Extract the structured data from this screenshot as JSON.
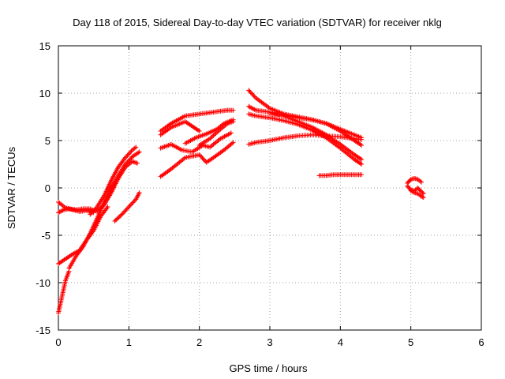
{
  "chart_data": {
    "type": "scatter",
    "title": "Day 118 of 2015, Sidereal Day-to-day VTEC variation (SDTVAR) for receiver nklg",
    "xlabel": "GPS time / hours",
    "ylabel": "SDTVAR / TECUs",
    "xlim": [
      0,
      6
    ],
    "ylim": [
      -15,
      15
    ],
    "xticks": [
      0,
      1,
      2,
      3,
      4,
      5,
      6
    ],
    "yticks": [
      -15,
      -10,
      -5,
      0,
      5,
      10,
      15
    ],
    "grid": true,
    "marker": "+",
    "color": "#ff0000",
    "series": [
      {
        "x": [
          0.0,
          0.1,
          0.2,
          0.3,
          0.4,
          0.5
        ],
        "y": [
          -1.5,
          -2.1,
          -2.3,
          -2.5,
          -2.4,
          -2.6
        ]
      },
      {
        "x": [
          0.0,
          0.08,
          0.15,
          0.25,
          0.35,
          0.45,
          0.55
        ],
        "y": [
          -2.6,
          -2.3,
          -2.2,
          -2.3,
          -2.2,
          -2.2,
          -2.5
        ]
      },
      {
        "x": [
          0.45,
          0.55,
          0.65,
          0.75,
          0.85,
          0.95,
          1.05,
          1.1
        ],
        "y": [
          -2.8,
          -2.0,
          -0.8,
          0.8,
          2.2,
          3.2,
          4.0,
          4.3
        ]
      },
      {
        "x": [
          0.55,
          0.65,
          0.75,
          0.85,
          0.95,
          1.05,
          1.12
        ],
        "y": [
          -2.4,
          -1.8,
          -0.5,
          1.0,
          2.2,
          2.8,
          2.6
        ]
      },
      {
        "x": [
          0.0,
          0.1,
          0.2,
          0.3,
          0.4,
          0.5,
          0.6,
          0.7
        ],
        "y": [
          -8.0,
          -7.5,
          -7.0,
          -6.6,
          -5.5,
          -4.5,
          -3.0,
          -2.0
        ]
      },
      {
        "x": [
          0.0,
          0.05,
          0.1,
          0.15
        ],
        "y": [
          -13.2,
          -11.5,
          -9.8,
          -8.8
        ]
      },
      {
        "x": [
          0.15,
          0.25,
          0.35,
          0.45,
          0.55,
          0.65,
          0.75,
          0.85,
          0.95,
          1.05,
          1.15
        ],
        "y": [
          -8.5,
          -7.2,
          -6.2,
          -4.8,
          -3.2,
          -1.5,
          0.0,
          1.3,
          2.5,
          3.3,
          3.8
        ]
      },
      {
        "x": [
          0.8,
          0.9,
          1.0,
          1.1,
          1.15
        ],
        "y": [
          -3.5,
          -2.8,
          -2.0,
          -1.2,
          -0.5
        ]
      },
      {
        "x": [
          1.45,
          1.6,
          1.8,
          2.0,
          2.2,
          2.4,
          2.48
        ],
        "y": [
          6.0,
          6.8,
          7.6,
          7.8,
          8.0,
          8.2,
          8.2
        ]
      },
      {
        "x": [
          1.45,
          1.6,
          1.8,
          1.9,
          2.0
        ],
        "y": [
          5.6,
          6.4,
          7.0,
          6.5,
          6.0
        ]
      },
      {
        "x": [
          1.45,
          1.6,
          1.75,
          1.9,
          2.05,
          2.15,
          2.3,
          2.45
        ],
        "y": [
          4.2,
          4.6,
          4.0,
          3.8,
          4.5,
          4.3,
          5.2,
          5.8
        ]
      },
      {
        "x": [
          1.45,
          1.6,
          1.8,
          2.0,
          2.1,
          2.2,
          2.35,
          2.48
        ],
        "y": [
          1.2,
          2.0,
          3.2,
          3.5,
          2.7,
          3.2,
          4.0,
          4.8
        ]
      },
      {
        "x": [
          1.8,
          1.95,
          2.1,
          2.25,
          2.35,
          2.48
        ],
        "y": [
          4.7,
          5.3,
          5.7,
          6.2,
          6.8,
          7.2
        ]
      },
      {
        "x": [
          2.0,
          2.15,
          2.3,
          2.4,
          2.48
        ],
        "y": [
          4.5,
          5.2,
          6.2,
          6.8,
          7.0
        ]
      },
      {
        "x": [
          2.7,
          2.8,
          3.0,
          3.2,
          3.4,
          3.6,
          3.8,
          4.0,
          4.2,
          4.3
        ],
        "y": [
          10.3,
          9.5,
          8.4,
          7.8,
          7.5,
          7.2,
          6.8,
          6.0,
          5.0,
          4.5
        ]
      },
      {
        "x": [
          2.7,
          2.8,
          3.0,
          3.2,
          3.4,
          3.6,
          3.8,
          4.0,
          4.2,
          4.3
        ],
        "y": [
          8.6,
          8.2,
          8.0,
          7.6,
          7.0,
          6.4,
          5.6,
          4.6,
          3.5,
          3.0
        ]
      },
      {
        "x": [
          2.7,
          2.8,
          3.0,
          3.2,
          3.4,
          3.6,
          3.8,
          4.0,
          4.2,
          4.3
        ],
        "y": [
          7.8,
          7.6,
          7.4,
          7.1,
          6.7,
          6.1,
          5.3,
          4.2,
          3.0,
          2.5
        ]
      },
      {
        "x": [
          2.7,
          2.8,
          3.0,
          3.2,
          3.4,
          3.6,
          3.8,
          4.0,
          4.2,
          4.3
        ],
        "y": [
          4.6,
          4.8,
          5.0,
          5.3,
          5.5,
          5.6,
          5.5,
          5.4,
          5.2,
          5.1
        ]
      },
      {
        "x": [
          3.0,
          3.2,
          3.4,
          3.6,
          3.8,
          4.0,
          4.2,
          4.3
        ],
        "y": [
          7.8,
          7.7,
          7.4,
          7.2,
          6.8,
          6.2,
          5.6,
          5.3
        ]
      },
      {
        "x": [
          3.7,
          3.8,
          3.9,
          4.0,
          4.1,
          4.2,
          4.3
        ],
        "y": [
          1.3,
          1.3,
          1.4,
          1.4,
          1.4,
          1.4,
          1.4
        ]
      },
      {
        "x": [
          4.95,
          5.0,
          5.05,
          5.1,
          5.15
        ],
        "y": [
          0.5,
          0.9,
          1.0,
          0.9,
          0.6
        ]
      },
      {
        "x": [
          4.95,
          5.0,
          5.05,
          5.1,
          5.15,
          5.18
        ],
        "y": [
          0.2,
          -0.2,
          -0.3,
          0.0,
          -0.4,
          -0.6
        ]
      },
      {
        "x": [
          5.0,
          5.05,
          5.1,
          5.15,
          5.18
        ],
        "y": [
          -0.3,
          -0.5,
          -0.6,
          -0.9,
          -1.0
        ]
      }
    ]
  }
}
